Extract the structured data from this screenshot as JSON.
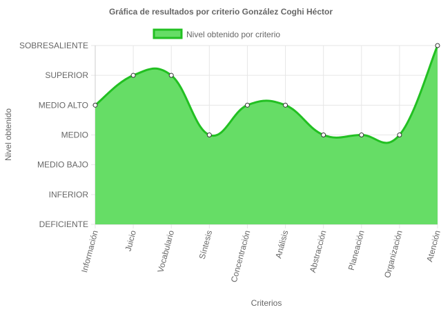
{
  "chart_data": {
    "type": "area",
    "title": "Gráfica de resultados por criterio González Coghi Héctor",
    "xlabel": "Criterios",
    "ylabel": "Nivel obtenido",
    "categories": [
      "Información",
      "Juicio",
      "Vocabulario",
      "Síntesis",
      "Concentración",
      "Análisis",
      "Abstracción",
      "Planeación",
      "Organización",
      "Atención"
    ],
    "y_levels": [
      "DEFICIENTE",
      "INFERIOR",
      "MEDIO BAJO",
      "MEDIO",
      "MEDIO ALTO",
      "SUPERIOR",
      "SOBRESALIENTE"
    ],
    "series": [
      {
        "name": "Nivel obtenido por criterio",
        "values": [
          4,
          5,
          5,
          3,
          4,
          4,
          3,
          3,
          3,
          6
        ]
      }
    ],
    "ylim": [
      0,
      6
    ],
    "grid": true,
    "legend_position": "top",
    "colors": {
      "fill": "#66dd66",
      "line": "#22c022",
      "point_fill": "#ffffff",
      "point_stroke": "#333333",
      "grid": "#e6e6e6",
      "axis": "#cccccc",
      "text": "#666666"
    }
  }
}
